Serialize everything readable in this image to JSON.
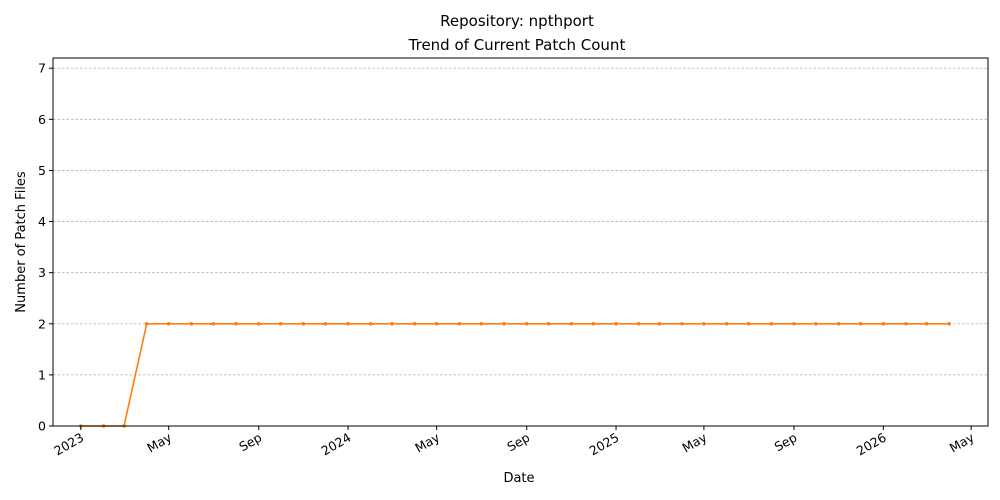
{
  "chart_data": {
    "type": "line",
    "title_line1": "Repository: npthport",
    "title_line2": "Trend of Current Patch Count",
    "xlabel": "Date",
    "ylabel": "Number of Patch Files",
    "ylim": [
      0,
      7.2
    ],
    "yticks": [
      0,
      1,
      2,
      3,
      4,
      5,
      6,
      7
    ],
    "xlim": [
      "2022-11-24",
      "2026-05-24"
    ],
    "xticks": [
      {
        "date": "2023-01-01",
        "label": "2023"
      },
      {
        "date": "2023-05-01",
        "label": "May"
      },
      {
        "date": "2023-09-01",
        "label": "Sep"
      },
      {
        "date": "2024-01-01",
        "label": "2024"
      },
      {
        "date": "2024-05-01",
        "label": "May"
      },
      {
        "date": "2024-09-01",
        "label": "Sep"
      },
      {
        "date": "2025-01-01",
        "label": "2025"
      },
      {
        "date": "2025-05-01",
        "label": "May"
      },
      {
        "date": "2025-09-01",
        "label": "Sep"
      },
      {
        "date": "2026-01-01",
        "label": "2026"
      },
      {
        "date": "2026-05-01",
        "label": "May"
      }
    ],
    "grid": "y",
    "color": "#ff7f0e",
    "series": [
      {
        "x": [
          "2023-01-01",
          "2023-02-01",
          "2023-03-01",
          "2023-04-01",
          "2023-05-01",
          "2023-06-01",
          "2023-07-01",
          "2023-08-01",
          "2023-09-01",
          "2023-10-01",
          "2023-11-01",
          "2023-12-01",
          "2024-01-01",
          "2024-02-01",
          "2024-03-01",
          "2024-04-01",
          "2024-05-01",
          "2024-06-01",
          "2024-07-01",
          "2024-08-01",
          "2024-09-01",
          "2024-10-01",
          "2024-11-01",
          "2024-12-01",
          "2025-01-01",
          "2025-02-01",
          "2025-03-01",
          "2025-04-01",
          "2025-05-01",
          "2025-06-01",
          "2025-07-01",
          "2025-08-01",
          "2025-09-01",
          "2025-10-01",
          "2025-11-01",
          "2025-12-01",
          "2026-01-01",
          "2026-02-01",
          "2026-03-01",
          "2026-04-01"
        ],
        "values": [
          0,
          0,
          0,
          2,
          2,
          2,
          2,
          2,
          2,
          2,
          2,
          2,
          2,
          2,
          2,
          2,
          2,
          2,
          2,
          2,
          2,
          2,
          2,
          2,
          2,
          2,
          2,
          2,
          2,
          2,
          2,
          2,
          2,
          2,
          2,
          2,
          2,
          2,
          2,
          2
        ]
      }
    ]
  }
}
